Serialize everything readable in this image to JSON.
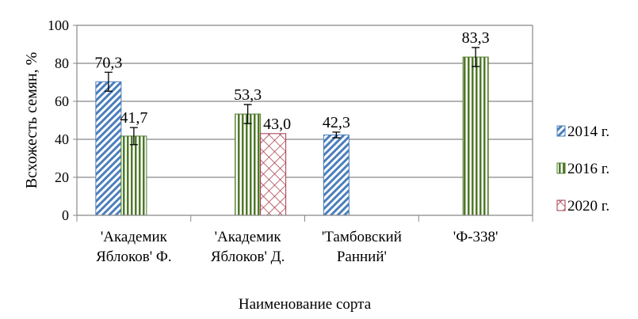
{
  "chart_data": {
    "type": "bar",
    "ylabel": "Всхожесть семян, %",
    "xlabel": "Наименование сорта",
    "ylim": [
      0,
      100
    ],
    "yticks": [
      0,
      20,
      40,
      60,
      80,
      100
    ],
    "grid": true,
    "legend_placement": "right",
    "categories": [
      [
        "'Академик",
        "Яблоков' Ф."
      ],
      [
        "'Академик",
        "Яблоков' Д."
      ],
      [
        "'Тамбовский",
        "Ранний'"
      ],
      [
        "'Ф-338'"
      ]
    ],
    "series": [
      {
        "name": "2014 г.",
        "color": "#4a7ebb",
        "pattern": "diagonal",
        "values": [
          70.3,
          null,
          42.3,
          null
        ],
        "labels": [
          "70,3",
          "",
          "42,3",
          ""
        ],
        "errors": [
          5,
          null,
          1.5,
          null
        ]
      },
      {
        "name": "2016 г.",
        "color": "#4f7a28",
        "pattern": "vertical",
        "values": [
          41.7,
          53.3,
          null,
          83.3
        ],
        "labels": [
          "41,7",
          "53,3",
          "",
          "83,3"
        ],
        "errors": [
          4.5,
          5,
          null,
          5
        ]
      },
      {
        "name": "2020 г.",
        "color": "#a33a4a",
        "pattern": "crosshatch",
        "values": [
          null,
          43.0,
          null,
          null
        ],
        "labels": [
          "",
          "43,0",
          "",
          ""
        ],
        "errors": [
          null,
          null,
          null,
          null
        ]
      }
    ]
  }
}
